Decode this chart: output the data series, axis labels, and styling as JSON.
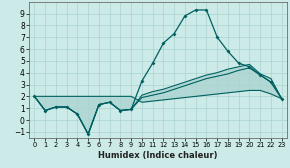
{
  "xlabel": "Humidex (Indice chaleur)",
  "bg_color": "#cceae7",
  "grid_color": "#aad4d0",
  "line_color": "#006060",
  "xlim": [
    -0.5,
    23.5
  ],
  "ylim": [
    -1.5,
    10
  ],
  "yticks": [
    -1,
    0,
    1,
    2,
    3,
    4,
    5,
    6,
    7,
    8,
    9
  ],
  "xticks": [
    0,
    1,
    2,
    3,
    4,
    5,
    6,
    7,
    8,
    9,
    10,
    11,
    12,
    13,
    14,
    15,
    16,
    17,
    18,
    19,
    20,
    21,
    22,
    23
  ],
  "x": [
    0,
    1,
    2,
    3,
    4,
    5,
    6,
    7,
    8,
    9,
    10,
    11,
    12,
    13,
    14,
    15,
    16,
    17,
    18,
    19,
    20,
    21,
    22,
    23
  ],
  "y_main": [
    2.0,
    0.8,
    1.1,
    1.1,
    0.5,
    -1.2,
    1.3,
    1.5,
    0.8,
    0.9,
    3.3,
    4.8,
    6.5,
    7.3,
    8.8,
    9.3,
    9.3,
    7.0,
    5.8,
    4.8,
    4.5,
    3.8,
    3.2,
    1.8
  ],
  "y_top": [
    2.0,
    0.8,
    1.1,
    1.1,
    0.5,
    -1.2,
    1.3,
    1.5,
    0.8,
    0.9,
    2.1,
    2.4,
    2.6,
    2.9,
    3.2,
    3.5,
    3.8,
    4.0,
    4.3,
    4.5,
    4.7,
    3.9,
    3.5,
    1.8
  ],
  "y_mid": [
    2.0,
    0.8,
    1.1,
    1.1,
    0.5,
    -1.2,
    1.3,
    1.5,
    0.8,
    0.9,
    1.9,
    2.1,
    2.3,
    2.6,
    2.9,
    3.2,
    3.5,
    3.7,
    3.9,
    4.2,
    4.4,
    3.8,
    3.2,
    1.8
  ],
  "y_bot": [
    2.0,
    2.0,
    2.0,
    2.0,
    2.0,
    2.0,
    2.0,
    2.0,
    2.0,
    2.0,
    1.5,
    1.6,
    1.7,
    1.8,
    1.9,
    2.0,
    2.1,
    2.2,
    2.3,
    2.4,
    2.5,
    2.5,
    2.2,
    1.8
  ]
}
